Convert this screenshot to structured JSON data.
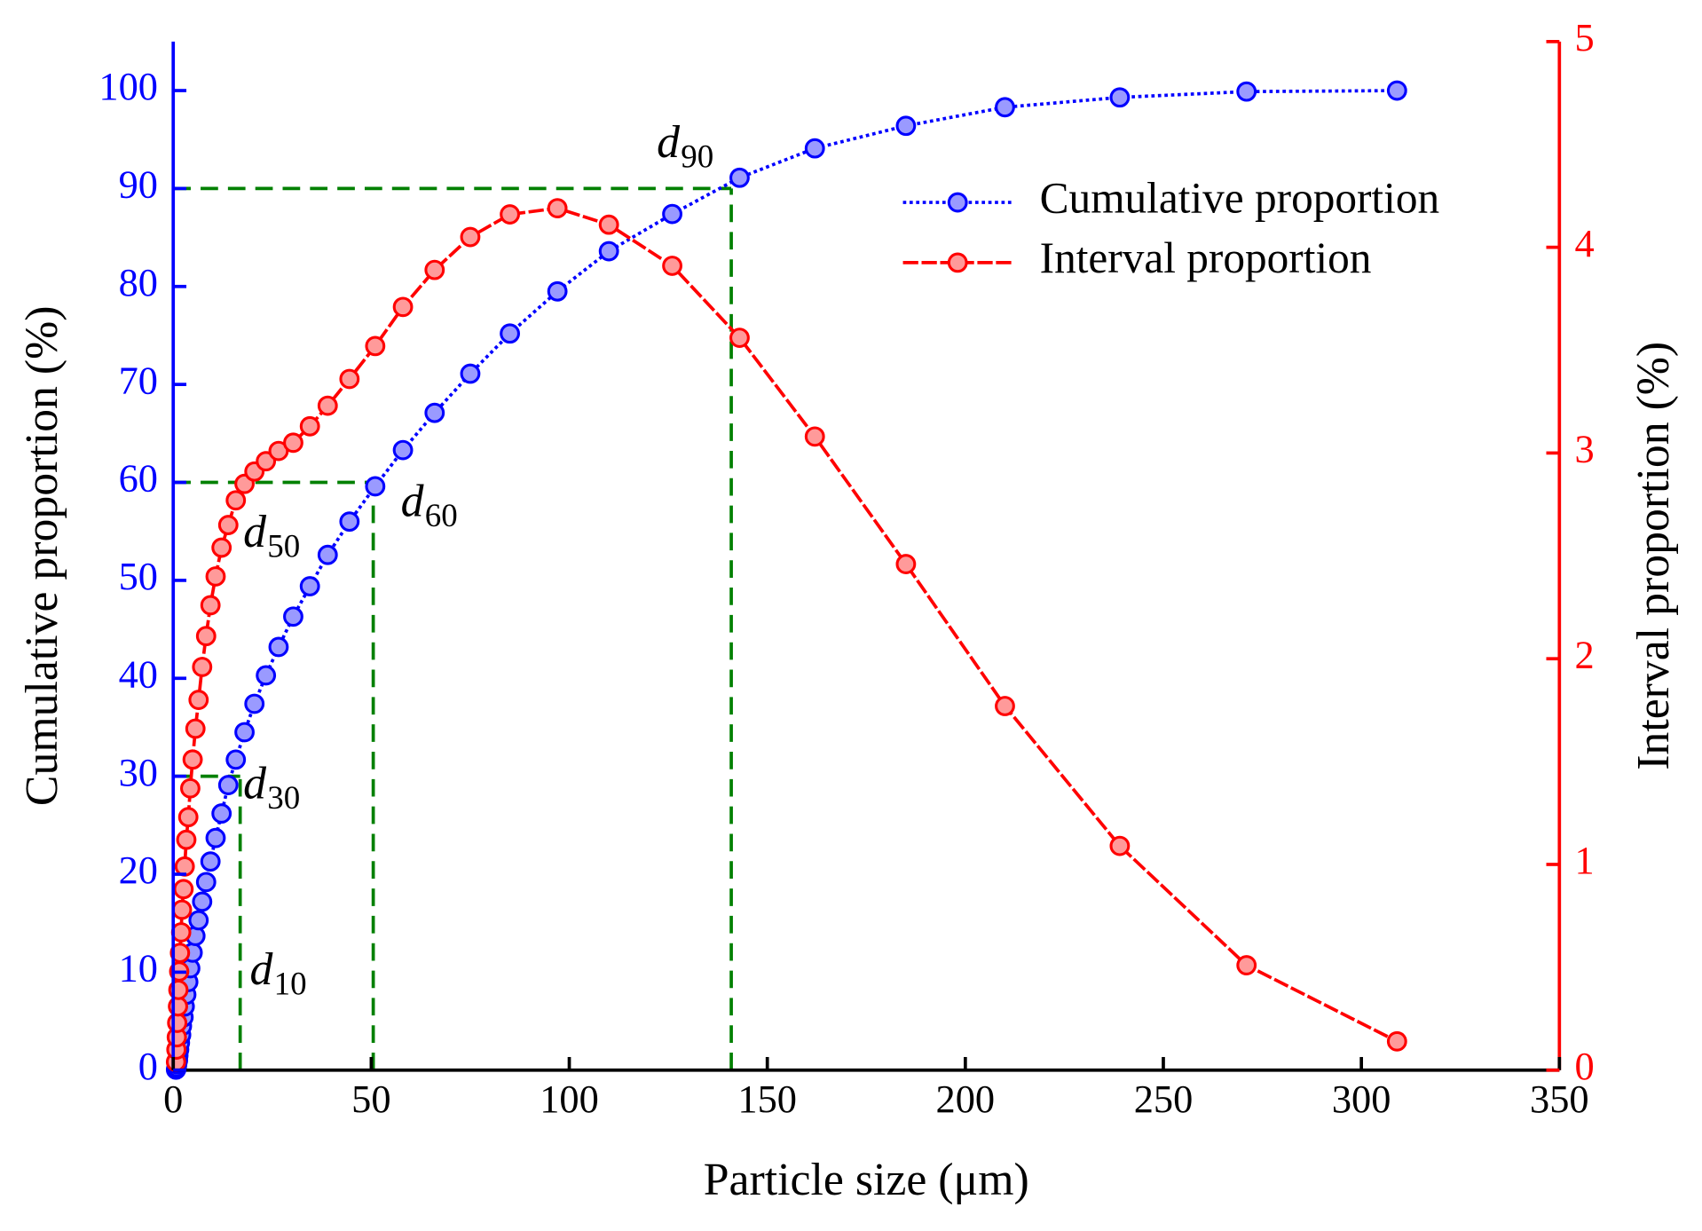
{
  "chart_data": {
    "type": "line",
    "x_label": "Particle size (μm)",
    "y_label": "Cumulative proportion (%)",
    "y2_label": "Interval proportion (%)",
    "x": [
      0.7,
      0.8,
      0.9,
      1.0,
      1.2,
      1.3,
      1.5,
      1.7,
      2.0,
      2.2,
      2.6,
      2.9,
      3.3,
      3.8,
      4.3,
      4.9,
      5.6,
      6.4,
      7.3,
      8.3,
      9.4,
      10.7,
      12.2,
      13.9,
      15.8,
      18,
      20.5,
      23.4,
      26.6,
      30.3,
      34.5,
      39,
      44.5,
      51,
      58,
      66,
      75,
      85,
      97,
      110,
      126,
      143,
      162,
      185,
      210,
      239,
      271,
      309
    ],
    "series": [
      {
        "name": "Cumulative proportion",
        "color": "#0000ff",
        "axis": "y",
        "values": [
          0.05,
          0.15,
          0.3,
          0.6,
          1.0,
          1.5,
          2.1,
          2.8,
          3.6,
          4.5,
          5.4,
          6.5,
          7.7,
          9.0,
          10.4,
          12.0,
          13.7,
          15.3,
          17.2,
          19.2,
          21.3,
          23.7,
          26.2,
          29.1,
          31.7,
          34.5,
          37.4,
          40.3,
          43.2,
          46.3,
          49.4,
          52.6,
          56.0,
          59.6,
          63.3,
          67.1,
          71.1,
          75.2,
          79.5,
          83.6,
          87.4,
          91.1,
          94.1,
          96.4,
          98.3,
          99.3,
          99.9,
          100
        ]
      },
      {
        "name": "Interval proportion",
        "color": "#ff0000",
        "axis": "y2",
        "values": [
          0.04,
          0.1,
          0.16,
          0.23,
          0.31,
          0.39,
          0.48,
          0.57,
          0.67,
          0.78,
          0.88,
          0.99,
          1.12,
          1.23,
          1.37,
          1.51,
          1.66,
          1.8,
          1.96,
          2.11,
          2.26,
          2.4,
          2.54,
          2.65,
          2.77,
          2.85,
          2.91,
          2.96,
          3.01,
          3.05,
          3.13,
          3.23,
          3.36,
          3.52,
          3.71,
          3.89,
          4.05,
          4.16,
          4.19,
          4.11,
          3.91,
          3.56,
          3.08,
          2.46,
          1.77,
          1.09,
          0.51,
          0.14
        ]
      }
    ],
    "xlim": [
      0,
      350
    ],
    "xticks": [
      0,
      50,
      100,
      150,
      200,
      250,
      300,
      350
    ],
    "ylim": [
      0,
      105
    ],
    "yticks": [
      0,
      10,
      20,
      30,
      40,
      50,
      60,
      70,
      80,
      90,
      100
    ],
    "y2lim": [
      0,
      5
    ],
    "y2ticks": [
      0,
      1,
      2,
      3,
      4,
      5
    ],
    "guides": [
      {
        "x": 16.9,
        "y": 30
      },
      {
        "x": 50.5,
        "y": 60
      },
      {
        "x": 140.9,
        "y": 90
      }
    ],
    "guide_color": "#008000",
    "annotations": [
      {
        "text": "d",
        "subscript": "10"
      },
      {
        "text": "d",
        "subscript": "30"
      },
      {
        "text": "d",
        "subscript": "50"
      },
      {
        "text": "d",
        "subscript": "60"
      },
      {
        "text": "d",
        "subscript": "90"
      }
    ],
    "legend": "upper right"
  }
}
